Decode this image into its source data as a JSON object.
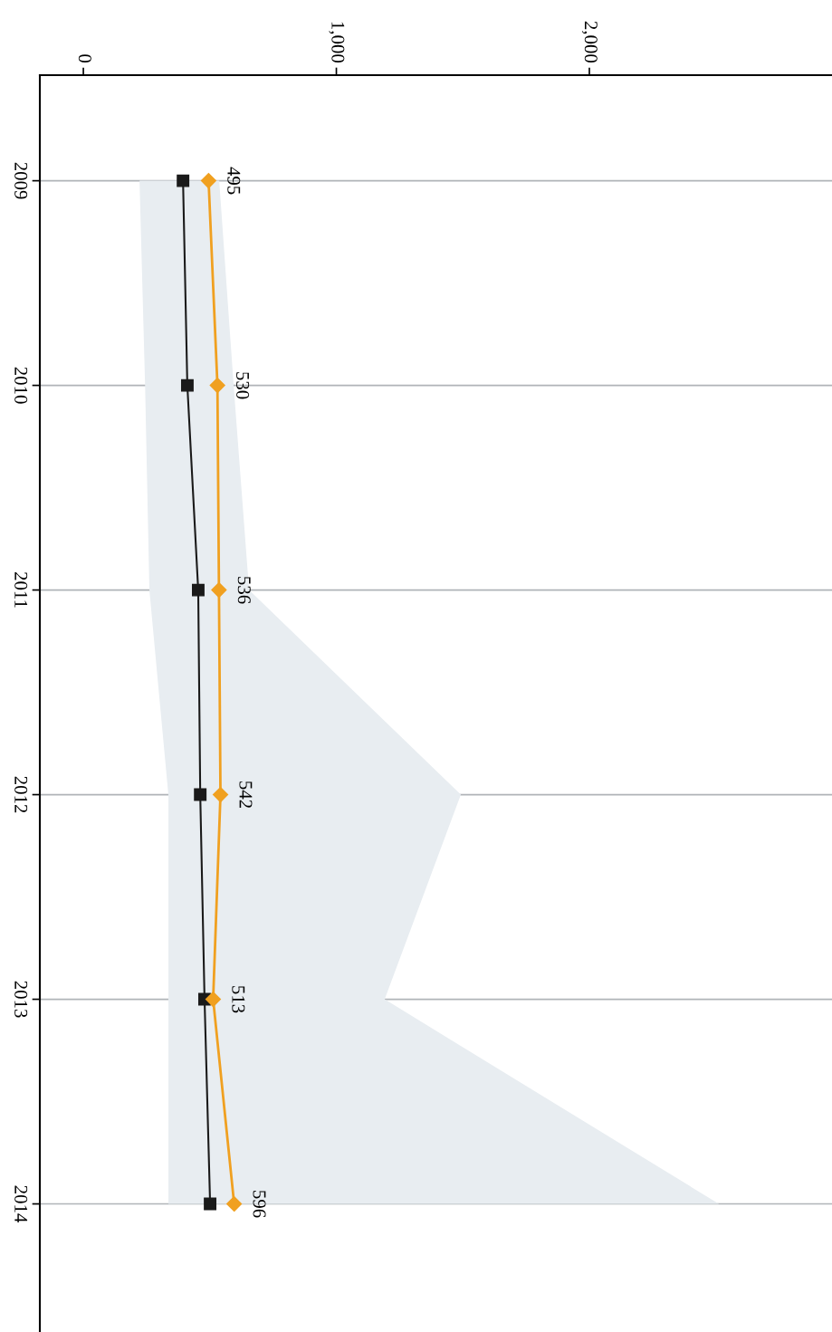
{
  "chart_data": {
    "type": "line",
    "orientation": "horizontal",
    "categories": [
      "2009",
      "2010",
      "2011",
      "2012",
      "2013",
      "2014"
    ],
    "series": [
      {
        "color": "#1a1a1a",
        "marker": "square",
        "values": [
          394,
          411,
          454,
          462,
          479,
          501
        ],
        "lower": [
          222,
          244,
          261,
          336,
          336,
          336
        ],
        "upper": [
          537,
          594,
          655,
          1492,
          1191,
          2512
        ]
      },
      {
        "color": "#f0a020",
        "marker": "diamond",
        "values": [
          495,
          530,
          536,
          542,
          513,
          596
        ],
        "value_labels": [
          "495",
          "530",
          "536",
          "542",
          "513",
          "596"
        ]
      }
    ],
    "xlim": [
      -172,
      2959
    ],
    "xticks": [
      {
        "value": 0,
        "label": "0"
      },
      {
        "value": 1000,
        "label": "1,000"
      },
      {
        "value": 2000,
        "label": "2,000"
      }
    ],
    "grid": "y"
  }
}
